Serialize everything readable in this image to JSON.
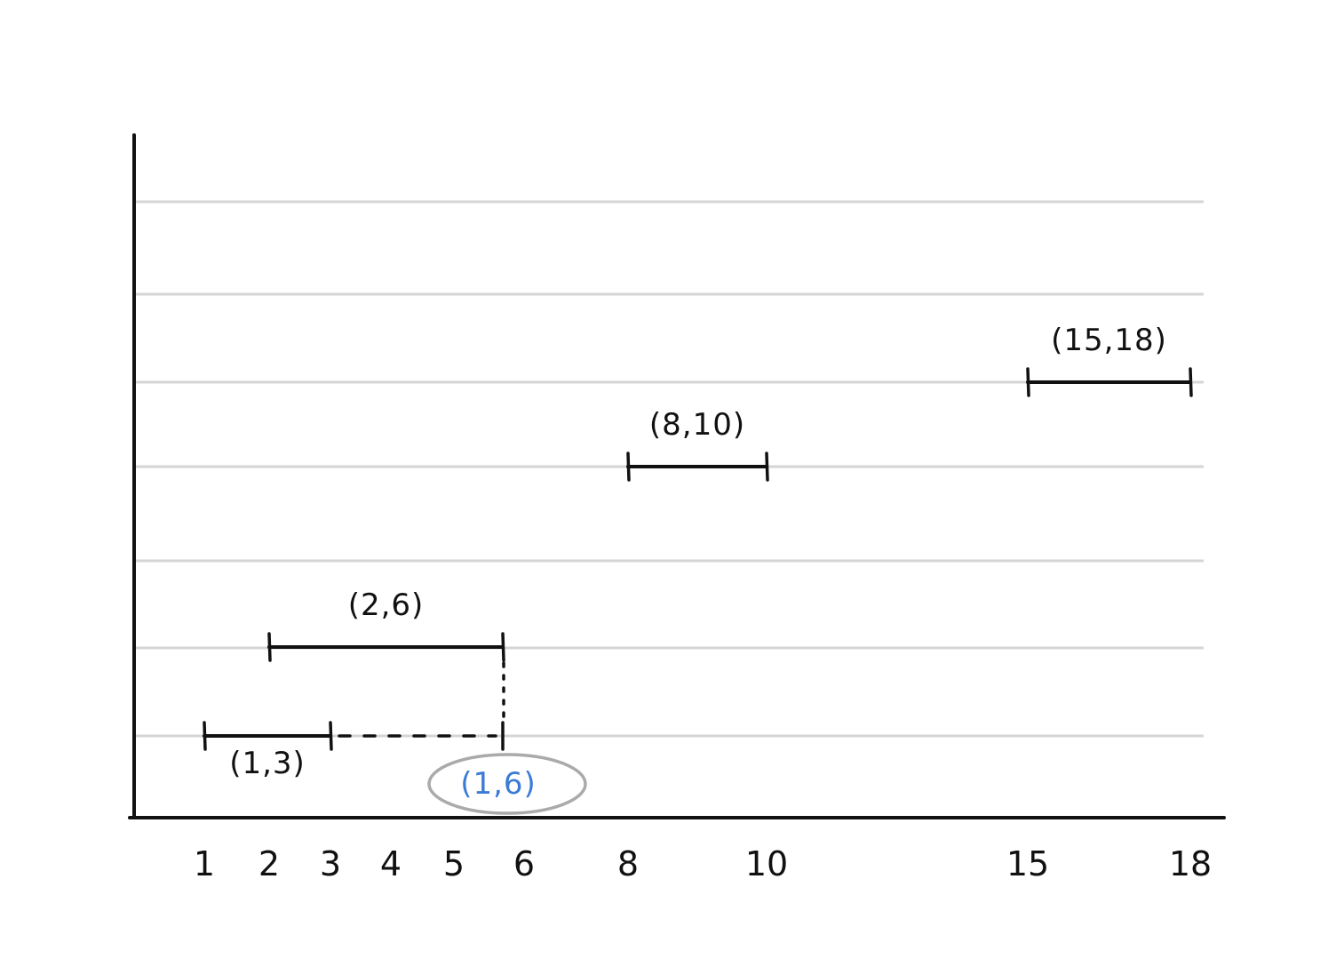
{
  "axis_ticks": [
    "1",
    "2",
    "3",
    "4",
    "5",
    "6",
    "8",
    "10",
    "15",
    "18"
  ],
  "intervals": [
    {
      "label": "(1,3)",
      "start": 1,
      "end": 3,
      "row": 1,
      "label_pos": "below"
    },
    {
      "label": "(2,6)",
      "start": 2,
      "end": 6,
      "row": 2,
      "label_pos": "above"
    },
    {
      "label": "(8,10)",
      "start": 8,
      "end": 10,
      "row": 4,
      "label_pos": "above"
    },
    {
      "label": "(15,18)",
      "start": 15,
      "end": 18,
      "row": 5,
      "label_pos": "above"
    }
  ],
  "merged_result": {
    "label": "(1,6)",
    "start": 1,
    "end": 6,
    "row": 1
  },
  "colors": {
    "ink": "#111111",
    "grid": "#d5d5d5",
    "highlight_text": "#3a7bd5",
    "highlight_ring": "#aaaaaa"
  }
}
